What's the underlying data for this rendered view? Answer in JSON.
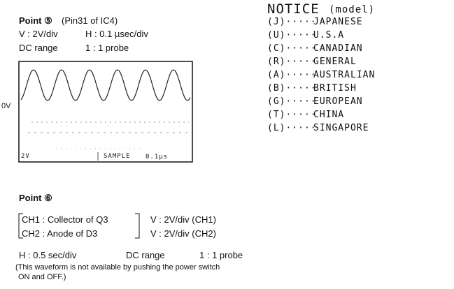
{
  "point5": {
    "title": "Point ⑤",
    "pin": "(Pin31 of IC4)",
    "v": "V : 2V/div",
    "h": "H : 0.1 µsec/div",
    "range": "DC range",
    "probe": "1 : 1 probe",
    "zero": "0V",
    "screen_v": "2V",
    "screen_mode": "SAMPLE",
    "screen_h": "0.1µs"
  },
  "notice": {
    "title": "NOTICE",
    "model": "(model)",
    "items": [
      {
        "code": "(J)·····",
        "name": "JAPANESE"
      },
      {
        "code": "(U)·····",
        "name": "U.S.A"
      },
      {
        "code": "(C)·····",
        "name": "CANADIAN"
      },
      {
        "code": "(R)·····",
        "name": "GENERAL"
      },
      {
        "code": "(A)·····",
        "name": "AUSTRALIAN"
      },
      {
        "code": "(B)·····",
        "name": "BRITISH"
      },
      {
        "code": "(G)·····",
        "name": "EUROPEAN"
      },
      {
        "code": "(T)·····",
        "name": "CHINA"
      },
      {
        "code": "(L)·····",
        "name": "SINGAPORE"
      }
    ]
  },
  "point6": {
    "title": "Point ⑥",
    "ch1": "CH1 : Collector of Q3",
    "ch2": "CH2 : Anode of D3",
    "v1": "V : 2V/div (CH1)",
    "v2": "V : 2V/div (CH2)",
    "h": "H : 0.5 sec/div",
    "range": "DC range",
    "probe": "1 : 1 probe",
    "note1": "(This waveform is not available by pushing the power switch",
    "note2": "ON and OFF.)"
  }
}
